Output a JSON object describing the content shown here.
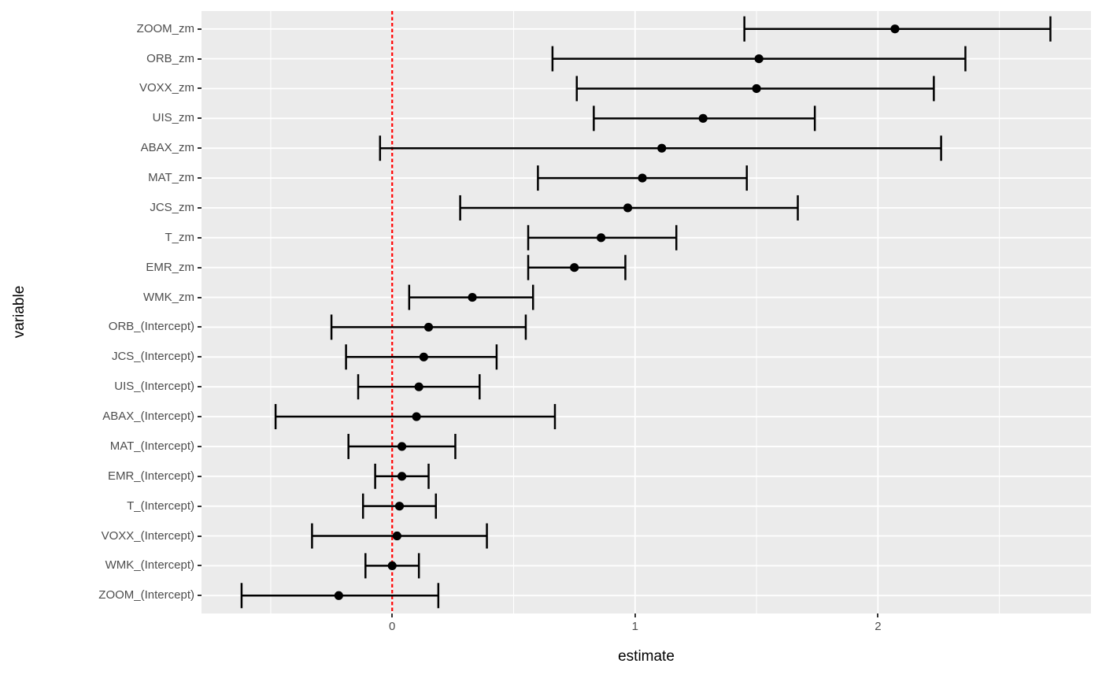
{
  "figure": {
    "kind": "ggplot2-style horizontal forest / coefficient plot",
    "x_axis_title": "estimate",
    "y_axis_title": "variable",
    "colors": {
      "panel_background": "#EBEBEB",
      "gridline": "#FFFFFF",
      "point": "#000000",
      "errorbar": "#000000",
      "reference_line": "#FF0000",
      "tick_mark": "#333333",
      "tick_label": "#4D4D4D",
      "axis_title": "#000000",
      "page_background": "#FFFFFF"
    }
  },
  "chart_data": {
    "type": "errorbar",
    "orientation": "horizontal",
    "title": "",
    "xlabel": "estimate",
    "ylabel": "variable",
    "xlim": [
      -0.785,
      2.877
    ],
    "x_major_ticks": [
      0,
      1,
      2
    ],
    "x_tick_labels": [
      "0",
      "1",
      "2"
    ],
    "x_minor_gridlines": [
      -0.5,
      0.5,
      1.5,
      2.5
    ],
    "grid": "major white on gray panel",
    "legend_position": "none",
    "reference_line": {
      "x": 0,
      "linetype": "dashed",
      "color": "#FF0000"
    },
    "points": [
      {
        "variable": "ZOOM_zm",
        "estimate": 2.07,
        "conf_low": 1.45,
        "conf_high": 2.71
      },
      {
        "variable": "ORB_zm",
        "estimate": 1.51,
        "conf_low": 0.66,
        "conf_high": 2.36
      },
      {
        "variable": "VOXX_zm",
        "estimate": 1.5,
        "conf_low": 0.76,
        "conf_high": 2.23
      },
      {
        "variable": "UIS_zm",
        "estimate": 1.28,
        "conf_low": 0.83,
        "conf_high": 1.74
      },
      {
        "variable": "ABAX_zm",
        "estimate": 1.11,
        "conf_low": -0.05,
        "conf_high": 2.26
      },
      {
        "variable": "MAT_zm",
        "estimate": 1.03,
        "conf_low": 0.6,
        "conf_high": 1.46
      },
      {
        "variable": "JCS_zm",
        "estimate": 0.97,
        "conf_low": 0.28,
        "conf_high": 1.67
      },
      {
        "variable": "T_zm",
        "estimate": 0.86,
        "conf_low": 0.56,
        "conf_high": 1.17
      },
      {
        "variable": "EMR_zm",
        "estimate": 0.75,
        "conf_low": 0.56,
        "conf_high": 0.96
      },
      {
        "variable": "WMK_zm",
        "estimate": 0.33,
        "conf_low": 0.07,
        "conf_high": 0.58
      },
      {
        "variable": "ORB_(Intercept)",
        "estimate": 0.15,
        "conf_low": -0.25,
        "conf_high": 0.55
      },
      {
        "variable": "JCS_(Intercept)",
        "estimate": 0.13,
        "conf_low": -0.19,
        "conf_high": 0.43
      },
      {
        "variable": "UIS_(Intercept)",
        "estimate": 0.11,
        "conf_low": -0.14,
        "conf_high": 0.36
      },
      {
        "variable": "ABAX_(Intercept)",
        "estimate": 0.1,
        "conf_low": -0.48,
        "conf_high": 0.67
      },
      {
        "variable": "MAT_(Intercept)",
        "estimate": 0.04,
        "conf_low": -0.18,
        "conf_high": 0.26
      },
      {
        "variable": "EMR_(Intercept)",
        "estimate": 0.04,
        "conf_low": -0.07,
        "conf_high": 0.15
      },
      {
        "variable": "T_(Intercept)",
        "estimate": 0.03,
        "conf_low": -0.12,
        "conf_high": 0.18
      },
      {
        "variable": "VOXX_(Intercept)",
        "estimate": 0.02,
        "conf_low": -0.33,
        "conf_high": 0.39
      },
      {
        "variable": "WMK_(Intercept)",
        "estimate": 0.0,
        "conf_low": -0.11,
        "conf_high": 0.11
      },
      {
        "variable": "ZOOM_(Intercept)",
        "estimate": -0.22,
        "conf_low": -0.62,
        "conf_high": 0.19
      }
    ]
  }
}
